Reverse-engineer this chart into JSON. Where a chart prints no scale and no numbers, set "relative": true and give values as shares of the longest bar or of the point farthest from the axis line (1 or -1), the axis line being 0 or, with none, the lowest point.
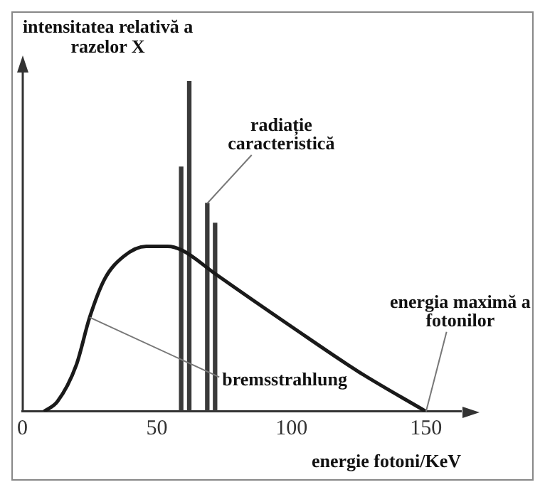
{
  "chart_data": {
    "type": "line",
    "relative": true,
    "xlabel": "energie fotoni/KeV",
    "xlim": [
      0,
      163
    ],
    "xticks": [
      0,
      50,
      100,
      150
    ],
    "grid": false,
    "legend": false,
    "marker": "none",
    "series": [
      {
        "color": "#1a1a1a",
        "x": [
          8,
          13,
          20,
          25,
          30.5,
          37.7,
          46,
          54,
          59.6,
          71.6,
          100.5,
          125,
          150
        ],
        "values": [
          0,
          0.03,
          0.14,
          0.285,
          0.4,
          0.47,
          0.5,
          0.5,
          0.487,
          0.417,
          0.254,
          0.12,
          0
        ]
      },
      {
        "type": "bar",
        "color": "#3a3a3a",
        "x": [
          59,
          62,
          68.7,
          71.6
        ],
        "values": [
          0.74,
          1,
          0.63,
          0.57
        ]
      }
    ],
    "annotations": [
      "intensitatea relativă a razelor X",
      {
        "text": "radiație caracteristică",
        "x": 68.7,
        "y": 0.63
      },
      {
        "text": "bremsstrahlung",
        "x": 25,
        "y": 0.285
      },
      {
        "text": "energia maximă a fotonilor",
        "x": 150,
        "y": 0
      }
    ]
  }
}
